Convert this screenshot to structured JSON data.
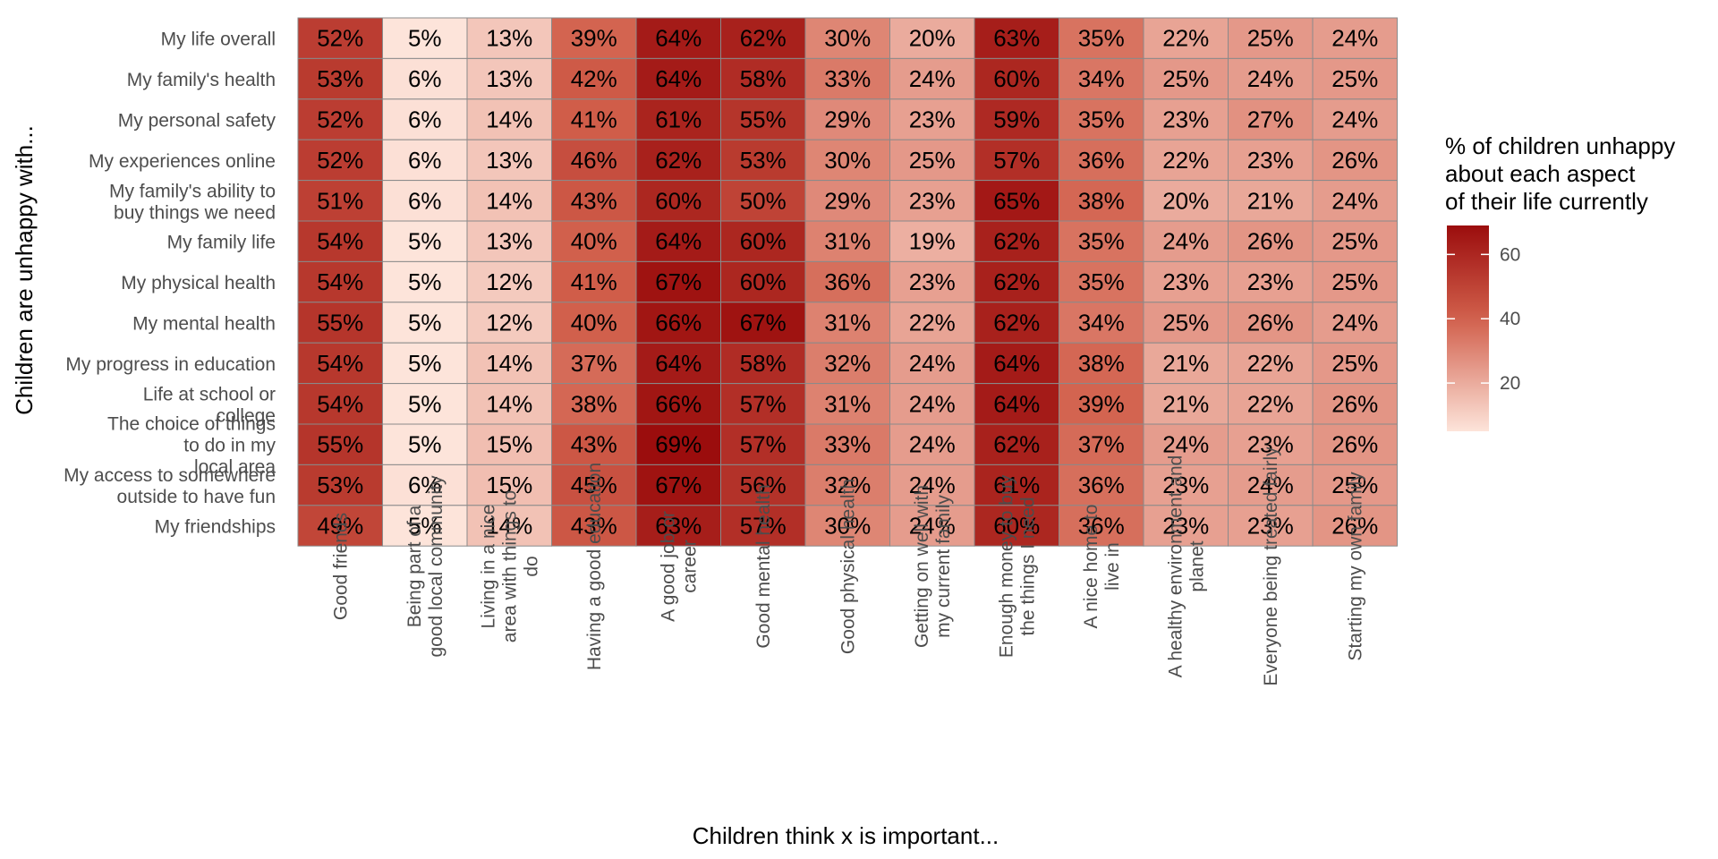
{
  "chart_data": {
    "type": "heatmap",
    "title": "",
    "xlabel": "Children think x is important...",
    "ylabel": "Children are unhappy with...",
    "x_categories": [
      [
        "Good friends"
      ],
      [
        "Being part of a",
        "good local community"
      ],
      [
        "Living in a nice",
        "area with things to",
        "do"
      ],
      [
        "Having a good education"
      ],
      [
        "A good job or",
        "career"
      ],
      [
        "Good mental health"
      ],
      [
        "Good physical health"
      ],
      [
        "Getting on well with",
        "my current family"
      ],
      [
        "Enough money to buy",
        "the things I need"
      ],
      [
        "A nice home to",
        "live in"
      ],
      [
        "A healthy environment and",
        "planet"
      ],
      [
        "Everyone being treated fairly"
      ],
      [
        "Starting my own family"
      ]
    ],
    "y_categories": [
      [
        "My life overall"
      ],
      [
        "My family's health"
      ],
      [
        "My personal safety"
      ],
      [
        "My experiences online"
      ],
      [
        "My family's ability to",
        "buy things we need"
      ],
      [
        "My family life"
      ],
      [
        "My physical health"
      ],
      [
        "My mental health"
      ],
      [
        "My progress in education"
      ],
      [
        "Life at school or",
        "college"
      ],
      [
        "The choice of things",
        "to do in my",
        "local area"
      ],
      [
        "My access to somewhere",
        "outside to have fun"
      ],
      [
        "My friendships"
      ]
    ],
    "values": [
      [
        52,
        5,
        13,
        39,
        64,
        62,
        30,
        20,
        63,
        35,
        22,
        25,
        24
      ],
      [
        53,
        6,
        13,
        42,
        64,
        58,
        33,
        24,
        60,
        34,
        25,
        24,
        25
      ],
      [
        52,
        6,
        14,
        41,
        61,
        55,
        29,
        23,
        59,
        35,
        23,
        27,
        24
      ],
      [
        52,
        6,
        13,
        46,
        62,
        53,
        30,
        25,
        57,
        36,
        22,
        23,
        26
      ],
      [
        51,
        6,
        14,
        43,
        60,
        50,
        29,
        23,
        65,
        38,
        20,
        21,
        24
      ],
      [
        54,
        5,
        13,
        40,
        64,
        60,
        31,
        19,
        62,
        35,
        24,
        26,
        25
      ],
      [
        54,
        5,
        12,
        41,
        67,
        60,
        36,
        23,
        62,
        35,
        23,
        23,
        25
      ],
      [
        55,
        5,
        12,
        40,
        66,
        67,
        31,
        22,
        62,
        34,
        25,
        26,
        24
      ],
      [
        54,
        5,
        14,
        37,
        64,
        58,
        32,
        24,
        64,
        38,
        21,
        22,
        25
      ],
      [
        54,
        5,
        14,
        38,
        66,
        57,
        31,
        24,
        64,
        39,
        21,
        22,
        26
      ],
      [
        55,
        5,
        15,
        43,
        69,
        57,
        33,
        24,
        62,
        37,
        24,
        23,
        26
      ],
      [
        53,
        6,
        15,
        45,
        67,
        56,
        32,
        24,
        61,
        36,
        23,
        24,
        25
      ],
      [
        49,
        5,
        14,
        43,
        63,
        57,
        30,
        24,
        60,
        36,
        23,
        23,
        26
      ]
    ],
    "value_suffix": "%",
    "legend": {
      "title_lines": [
        "% of children unhappy",
        "about each aspect",
        "of  their life currently"
      ],
      "ticks": [
        20,
        40,
        60
      ],
      "range": [
        5,
        69
      ],
      "position": "right"
    },
    "color_low": "#fde4da",
    "color_high": "#9b0d0d",
    "grid": false
  }
}
